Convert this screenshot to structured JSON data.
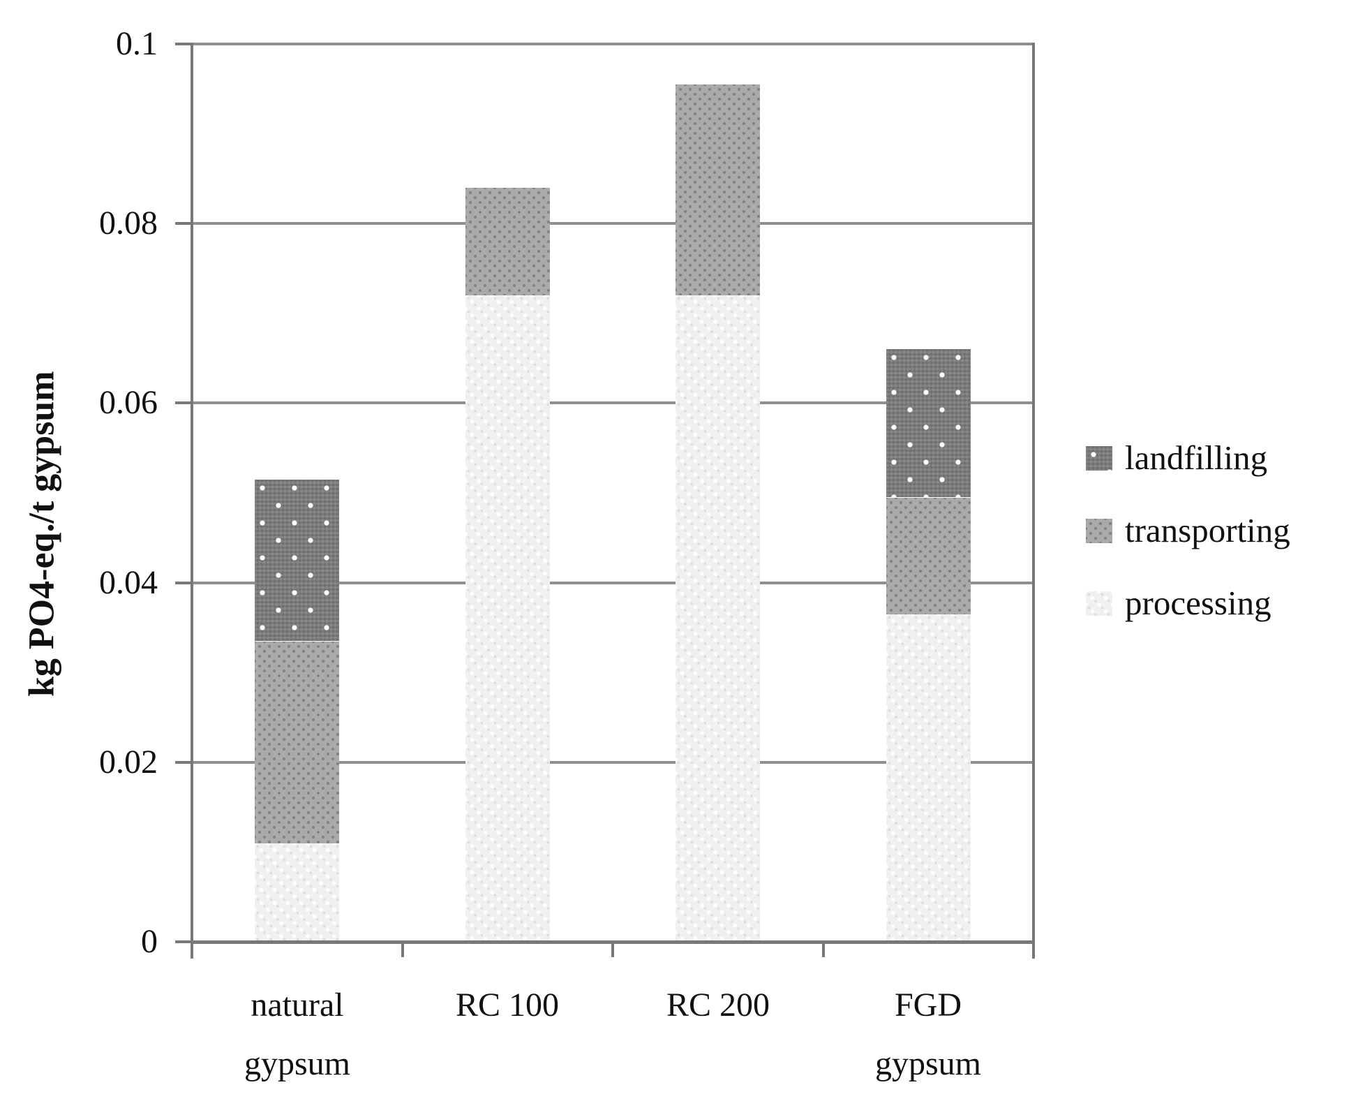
{
  "chart_data": {
    "type": "bar",
    "stacked": true,
    "title": "",
    "ylabel": "kg PO4-eq./t gypsum",
    "xlabel": "",
    "ylim": [
      0,
      0.1
    ],
    "grid": "horizontal",
    "yticks": [
      {
        "value": 0,
        "label": "0"
      },
      {
        "value": 0.02,
        "label": "0.02"
      },
      {
        "value": 0.04,
        "label": "0.04"
      },
      {
        "value": 0.06,
        "label": "0.06"
      },
      {
        "value": 0.08,
        "label": "0.08"
      },
      {
        "value": 0.1,
        "label": "0.1"
      }
    ],
    "categories": [
      "natural\ngypsum",
      "RC 100",
      "RC 200",
      "FGD\ngypsum"
    ],
    "series": [
      {
        "name": "processing",
        "pattern": "fine-white-dots",
        "color": "#f0f0f0",
        "values": [
          0.011,
          0.072,
          0.072,
          0.0365
        ]
      },
      {
        "name": "transporting",
        "pattern": "fine-dark-dots",
        "color": "#aaaaaa",
        "values": [
          0.0225,
          0.012,
          0.0235,
          0.013
        ]
      },
      {
        "name": "landfilling",
        "pattern": "white-dots",
        "color": "#7d7d7d",
        "values": [
          0.018,
          0,
          0,
          0.0165
        ]
      }
    ],
    "stack_totals": [
      0.0515,
      0.084,
      0.0955,
      0.066
    ],
    "legend": {
      "position": "right",
      "entries": [
        "landfilling",
        "transporting",
        "processing"
      ]
    },
    "style": {
      "axis_color": "#787878",
      "gridline_color": "#8f8f8f",
      "text_color": "#111111",
      "background": "#ffffff"
    }
  }
}
